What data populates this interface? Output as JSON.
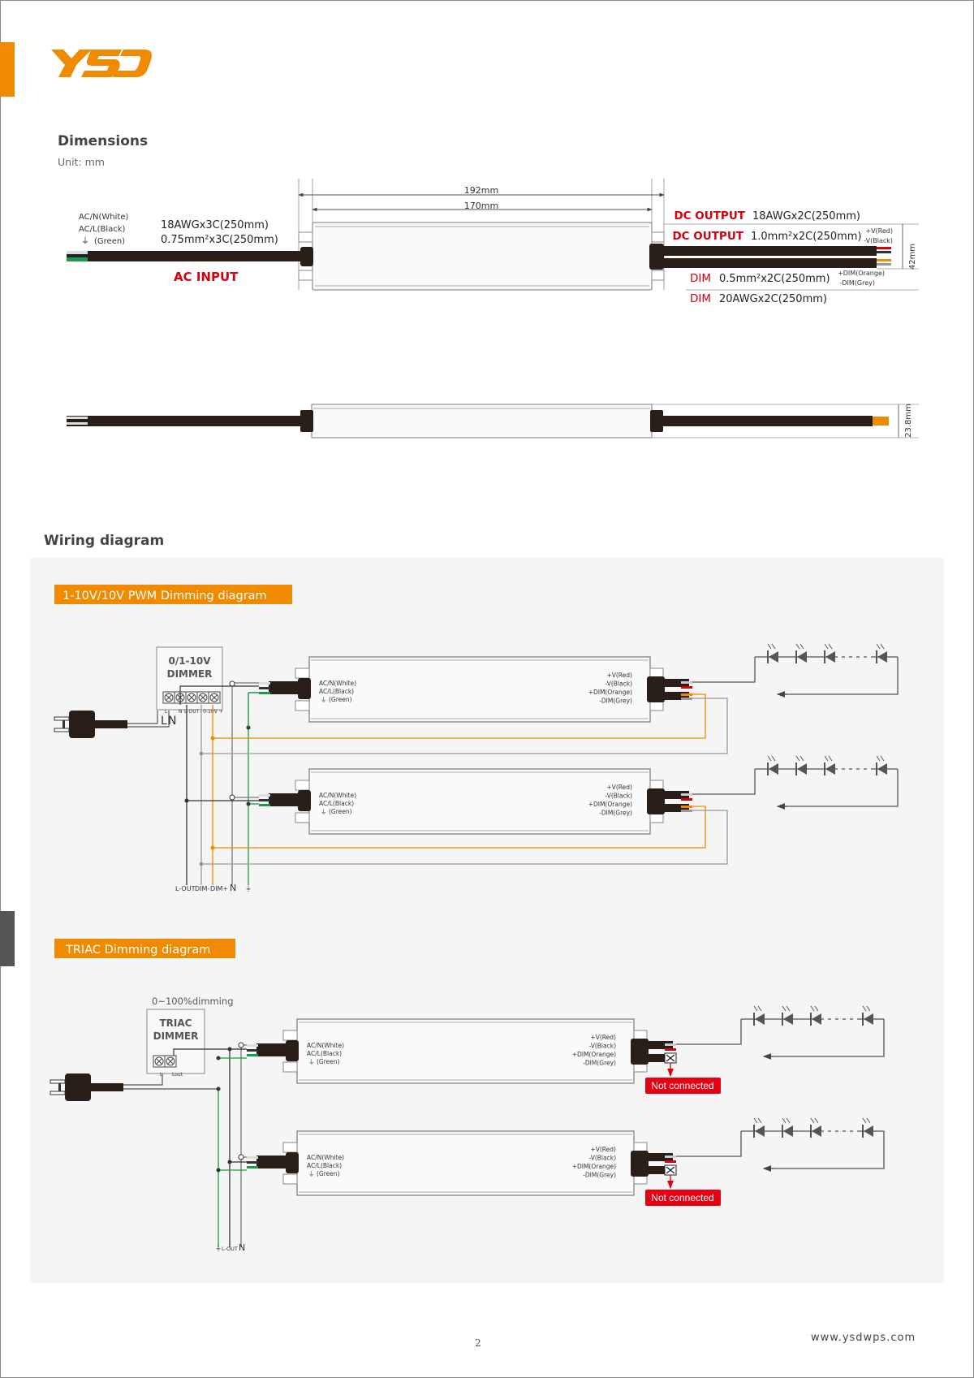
{
  "brand": {
    "logo_text": "YSD",
    "accent_color": "#f08a00"
  },
  "dimensions": {
    "title": "Dimensions",
    "unit": "Unit: mm",
    "ac_labels": [
      "AC/N(White)",
      "AC/L(Black)",
      "(Green)"
    ],
    "ac_cable": [
      "18AWGx3C(250mm)",
      "0.75mm²x3C(250mm)"
    ],
    "ac_input": "AC INPUT",
    "len_overall": "192mm",
    "len_body": "170mm",
    "dc_rows": [
      {
        "tag": "DC OUTPUT",
        "spec": "18AWGx2C(250mm)"
      },
      {
        "tag": "DC OUTPUT",
        "spec": "1.0mm²x2C(250mm)"
      },
      {
        "tag": "DIM",
        "spec": "0.5mm²x2C(250mm)"
      },
      {
        "tag": "DIM",
        "spec": "20AWGx2C(250mm)"
      }
    ],
    "dc_labels": [
      "+V(Red)",
      "-V(Black)"
    ],
    "dim_labels": [
      "+DIM(Orange)",
      "-DIM(Grey)"
    ],
    "height": "42mm",
    "thickness": "23.8mm"
  },
  "wiring": {
    "title": "Wiring diagram",
    "driver_left": [
      "AC/N(White)",
      "AC/L(Black)",
      "(Green)"
    ],
    "driver_right": [
      "+V(Red)",
      "-V(Black)",
      "+DIM(Orange)",
      "-DIM(Grey)"
    ],
    "pwm": {
      "label": "1-10V/10V PWM  Dimming diagram",
      "dimmer": [
        "0/1-10V",
        "DIMMER"
      ],
      "terminals": [
        "L",
        "N",
        "L-OUT",
        "- 0-10V +"
      ],
      "plug_labels": [
        "L",
        "N"
      ],
      "bus_labels": [
        "L-OUT",
        "DIM-",
        "DIM+",
        "N",
        "⏚"
      ]
    },
    "triac": {
      "label": "TRIAC Dimming diagram",
      "caption": "0~100%dimming",
      "dimmer": [
        "TRIAC",
        "DIMMER"
      ],
      "terminals": [
        "L",
        "Lout"
      ],
      "bus_labels": [
        "⏚",
        "L-OUT",
        "N"
      ],
      "not_connected": "Not connected"
    }
  },
  "footer": {
    "page": "2",
    "url": "www.ysdwps.com"
  }
}
